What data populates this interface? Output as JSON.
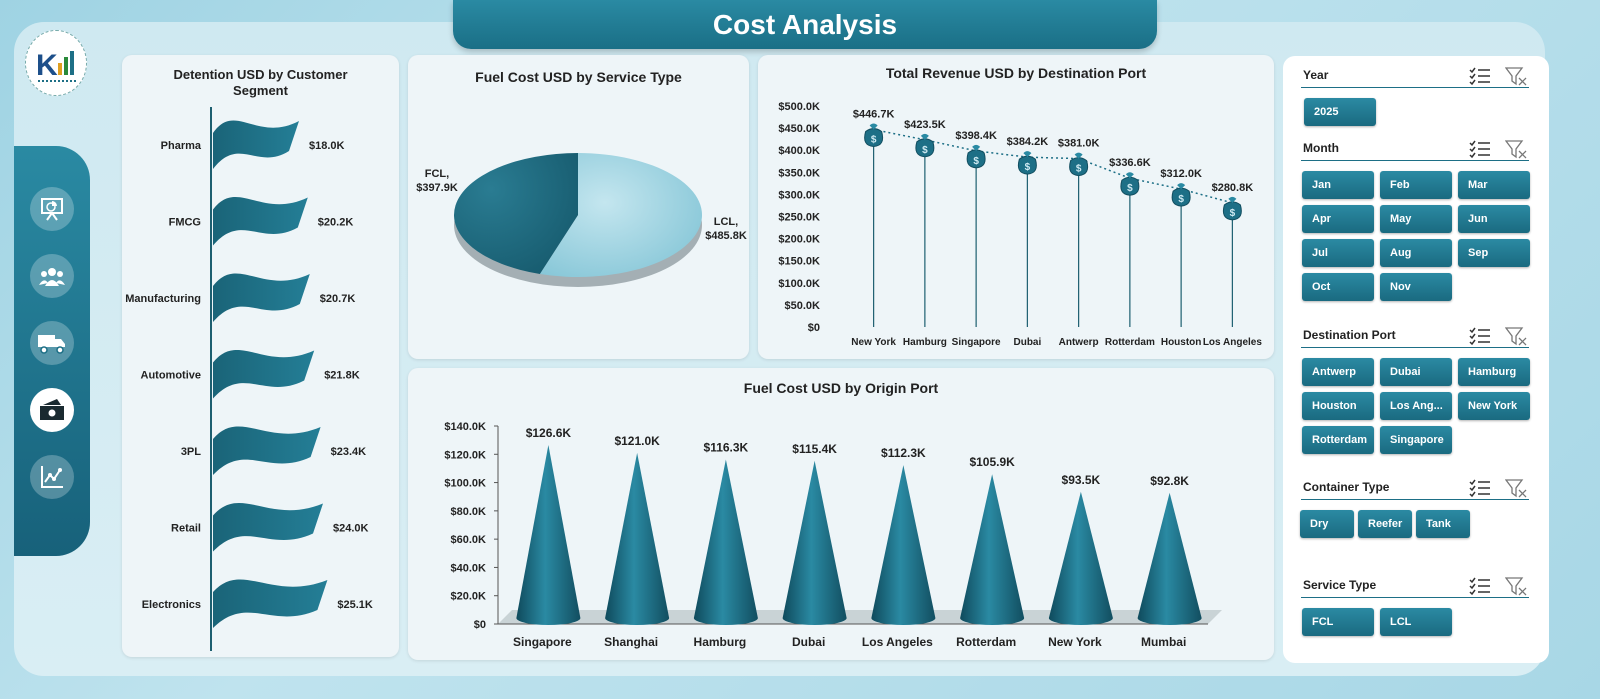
{
  "header": {
    "title": "Cost Analysis"
  },
  "colors": {
    "accent": "#1d6f86",
    "accent_dark": "#124e60",
    "light": "#8ecbdc"
  },
  "nav": {
    "items": [
      {
        "icon": "presentation-chart-icon",
        "active": false
      },
      {
        "icon": "users-icon",
        "active": false
      },
      {
        "icon": "truck-icon",
        "active": false
      },
      {
        "icon": "money-icon",
        "active": true
      },
      {
        "icon": "trend-chart-icon",
        "active": false
      }
    ]
  },
  "chart_data": [
    {
      "id": "detention",
      "type": "bar",
      "title": "Detention USD by Customer Segment",
      "categories": [
        "Pharma",
        "FMCG",
        "Manufacturing",
        "Automotive",
        "3PL",
        "Retail",
        "Electronics"
      ],
      "values": [
        18.0,
        20.2,
        20.7,
        21.8,
        23.4,
        24.0,
        25.1
      ],
      "value_labels": [
        "$18.0K",
        "$20.2K",
        "$20.7K",
        "$21.8K",
        "$23.4K",
        "$24.0K",
        "$25.1K"
      ],
      "unit": "K USD"
    },
    {
      "id": "fuel_service",
      "type": "pie",
      "title": "Fuel Cost USD by Service Type",
      "categories": [
        "FCL",
        "LCL"
      ],
      "values": [
        397.9,
        485.8
      ],
      "slice_labels": [
        "FCL,\n$397.9K",
        "LCL,\n$485.8K"
      ],
      "unit": "K USD"
    },
    {
      "id": "revenue_port",
      "type": "line",
      "title": "Total Revenue USD by Destination Port",
      "categories": [
        "New York",
        "Hamburg",
        "Singapore",
        "Dubai",
        "Antwerp",
        "Rotterdam",
        "Houston",
        "Los Angeles"
      ],
      "values": [
        446.7,
        423.5,
        398.4,
        384.2,
        381.0,
        336.6,
        312.0,
        280.8
      ],
      "value_labels": [
        "$446.7K",
        "$423.5K",
        "$398.4K",
        "$384.2K",
        "$381.0K",
        "$336.6K",
        "$312.0K",
        "$280.8K"
      ],
      "ylim": [
        0,
        500
      ],
      "yticks": [
        "$0",
        "$50.0K",
        "$100.0K",
        "$150.0K",
        "$200.0K",
        "$250.0K",
        "$300.0K",
        "$350.0K",
        "$400.0K",
        "$450.0K",
        "$500.0K"
      ],
      "unit": "K USD"
    },
    {
      "id": "fuel_origin",
      "type": "bar",
      "title": "Fuel Cost USD by Origin Port",
      "categories": [
        "Singapore",
        "Shanghai",
        "Hamburg",
        "Dubai",
        "Los Angeles",
        "Rotterdam",
        "New York",
        "Mumbai"
      ],
      "values": [
        126.6,
        121.0,
        116.3,
        115.4,
        112.3,
        105.9,
        93.5,
        92.8
      ],
      "value_labels": [
        "$126.6K",
        "$121.0K",
        "$116.3K",
        "$115.4K",
        "$112.3K",
        "$105.9K",
        "$93.5K",
        "$92.8K"
      ],
      "ylim": [
        0,
        140
      ],
      "yticks": [
        "$0",
        "$20.0K",
        "$40.0K",
        "$60.0K",
        "$80.0K",
        "$100.0K",
        "$120.0K",
        "$140.0K"
      ],
      "unit": "K USD"
    }
  ],
  "slicers": [
    {
      "name": "Year",
      "items": [
        "2025"
      ]
    },
    {
      "name": "Month",
      "items": [
        "Jan",
        "Feb",
        "Mar",
        "Apr",
        "May",
        "Jun",
        "Jul",
        "Aug",
        "Sep",
        "Oct",
        "Nov"
      ]
    },
    {
      "name": "Destination Port",
      "items": [
        "Antwerp",
        "Dubai",
        "Hamburg",
        "Houston",
        "Los Ang...",
        "New York",
        "Rotterdam",
        "Singapore"
      ]
    },
    {
      "name": "Container Type",
      "items": [
        "Dry",
        "Reefer",
        "Tank"
      ]
    },
    {
      "name": "Service Type",
      "items": [
        "FCL",
        "LCL"
      ]
    }
  ]
}
